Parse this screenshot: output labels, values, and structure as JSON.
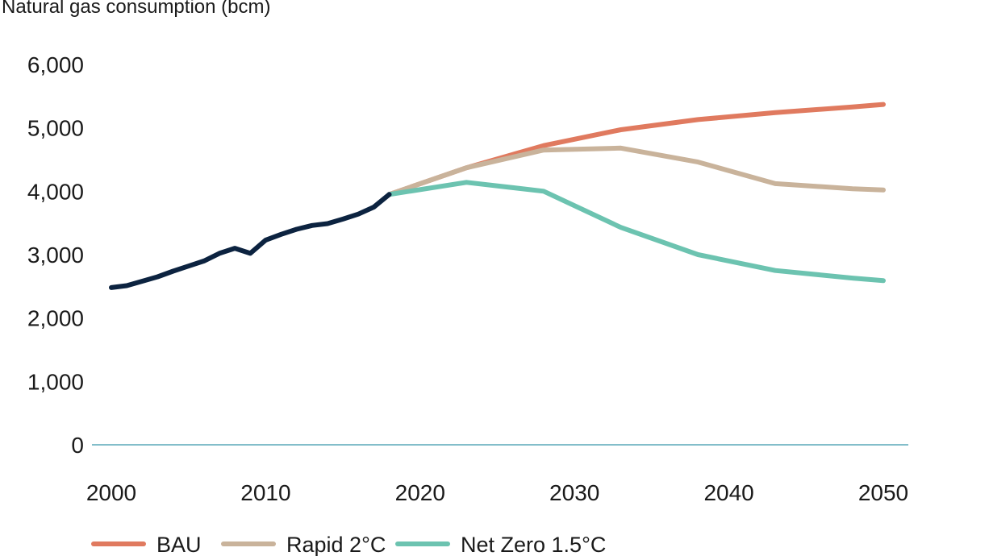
{
  "chart_data": {
    "type": "line",
    "ylabel": "Natural gas consumption (bcm)",
    "xlim": [
      2000,
      2050
    ],
    "ylim": [
      0,
      6000
    ],
    "x_ticks": [
      "2000",
      "2010",
      "2020",
      "2030",
      "2040",
      "2050"
    ],
    "y_ticks": [
      "0",
      "1,000",
      "2,000",
      "3,000",
      "4,000",
      "5,000",
      "6,000"
    ],
    "grid": false,
    "legend_position": "bottom",
    "series": [
      {
        "name": "",
        "color": "#0c2340",
        "x": [
          2000,
          2001,
          2002,
          2003,
          2004,
          2005,
          2006,
          2007,
          2008,
          2009,
          2010,
          2011,
          2012,
          2013,
          2014,
          2015,
          2016,
          2017,
          2018
        ],
        "y": [
          2480,
          2510,
          2580,
          2650,
          2740,
          2820,
          2900,
          3020,
          3100,
          3020,
          3230,
          3320,
          3400,
          3460,
          3490,
          3560,
          3640,
          3750,
          3950
        ]
      },
      {
        "name": "BAU",
        "color": "#e07a5f",
        "x": [
          2018,
          2023,
          2028,
          2033,
          2038,
          2043,
          2048,
          2050
        ],
        "y": [
          3950,
          4370,
          4720,
          4970,
          5130,
          5240,
          5330,
          5370
        ]
      },
      {
        "name": "Rapid 2°C",
        "color": "#c9b39b",
        "x": [
          2018,
          2023,
          2028,
          2033,
          2038,
          2043,
          2048,
          2050
        ],
        "y": [
          3950,
          4370,
          4650,
          4680,
          4460,
          4120,
          4040,
          4020
        ]
      },
      {
        "name": "Net Zero 1.5°C",
        "color": "#6cc3b0",
        "x": [
          2018,
          2023,
          2028,
          2033,
          2038,
          2043,
          2048,
          2050
        ],
        "y": [
          3950,
          4140,
          4000,
          3430,
          3000,
          2750,
          2630,
          2590
        ]
      }
    ],
    "baseline_color": "#5aa8b8"
  }
}
